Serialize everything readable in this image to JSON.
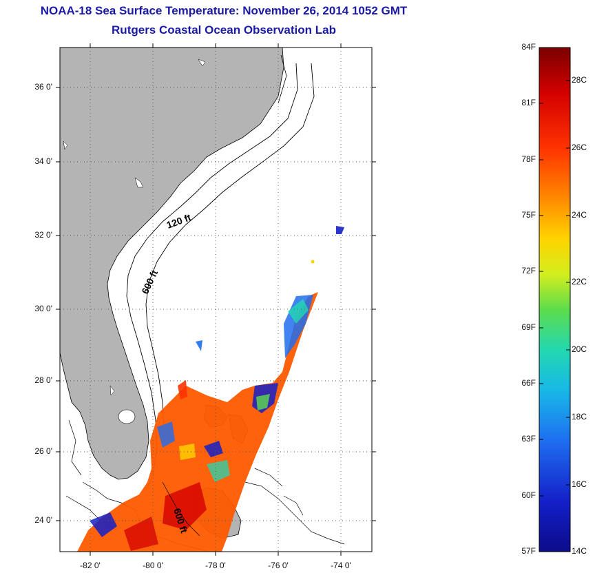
{
  "title": "NOAA-18 Sea Surface Temperature:  November 26, 2014 1052 GMT",
  "subtitle": "Rutgers Coastal Ocean Observation Lab",
  "map": {
    "lat_range": [
      23,
      37
    ],
    "lon_range": [
      -83,
      -73
    ],
    "lat_ticks": [
      "24 0'",
      "26 0'",
      "28 0'",
      "30 0'",
      "32 0'",
      "34 0'",
      "36 0'"
    ],
    "lon_ticks": [
      "-82 0'",
      "-80 0'",
      "-78 0'",
      "-76 0'",
      "-74 0'"
    ],
    "land_color": "#b4b4b4",
    "grid": "dotted",
    "contour_labels": [
      "120 ft",
      "600 ft",
      "600 ft"
    ]
  },
  "colorbar": {
    "fahrenheit_labels": [
      "84F",
      "81F",
      "78F",
      "75F",
      "72F",
      "69F",
      "66F",
      "63F",
      "60F",
      "57F"
    ],
    "celsius_labels": [
      "28C",
      "26C",
      "24C",
      "22C",
      "20C",
      "18C",
      "16C",
      "14C"
    ],
    "colors": [
      "#7a0000",
      "#d40000",
      "#ff3300",
      "#ff8a00",
      "#ffd400",
      "#d2ee1e",
      "#5ddc4c",
      "#22d8b0",
      "#18b8e8",
      "#1e6ef0",
      "#1420c8",
      "#0c0c8c"
    ]
  }
}
